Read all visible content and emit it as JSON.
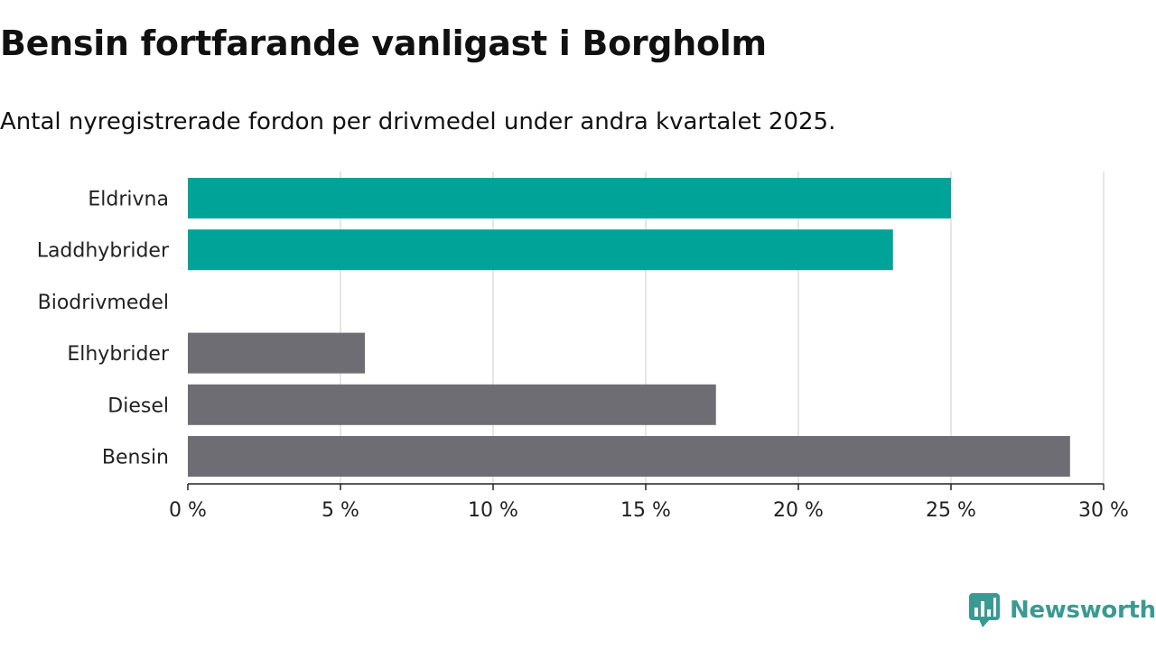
{
  "title": "Bensin fortfarande vanligast i Borgholm",
  "subtitle": "Antal nyregistrerade fordon per drivmedel under andra kvartalet 2025.",
  "brand": {
    "name": "Newsworthy",
    "color": "#3a9a93",
    "icon": "newsworthy-chart-bubble-icon"
  },
  "colors": {
    "highlight": "#00a398",
    "default": "#6e6d73",
    "grid": "#dedede",
    "axis": "#222222"
  },
  "chart_data": {
    "type": "bar",
    "orientation": "horizontal",
    "categories": [
      "Eldrivna",
      "Laddhybrider",
      "Biodrivmedel",
      "Elhybrider",
      "Diesel",
      "Bensin"
    ],
    "values": [
      25.0,
      23.1,
      0,
      5.8,
      17.3,
      28.9
    ],
    "highlighted": [
      true,
      true,
      false,
      false,
      false,
      false
    ],
    "xlim": [
      0,
      30
    ],
    "xticks": [
      0,
      5,
      10,
      15,
      20,
      25,
      30
    ],
    "xtick_labels": [
      "0 %",
      "5 %",
      "10 %",
      "15 %",
      "20 %",
      "25 %",
      "30 %"
    ],
    "xlabel": "",
    "ylabel": "",
    "grid": "vertical",
    "legend": "none"
  }
}
